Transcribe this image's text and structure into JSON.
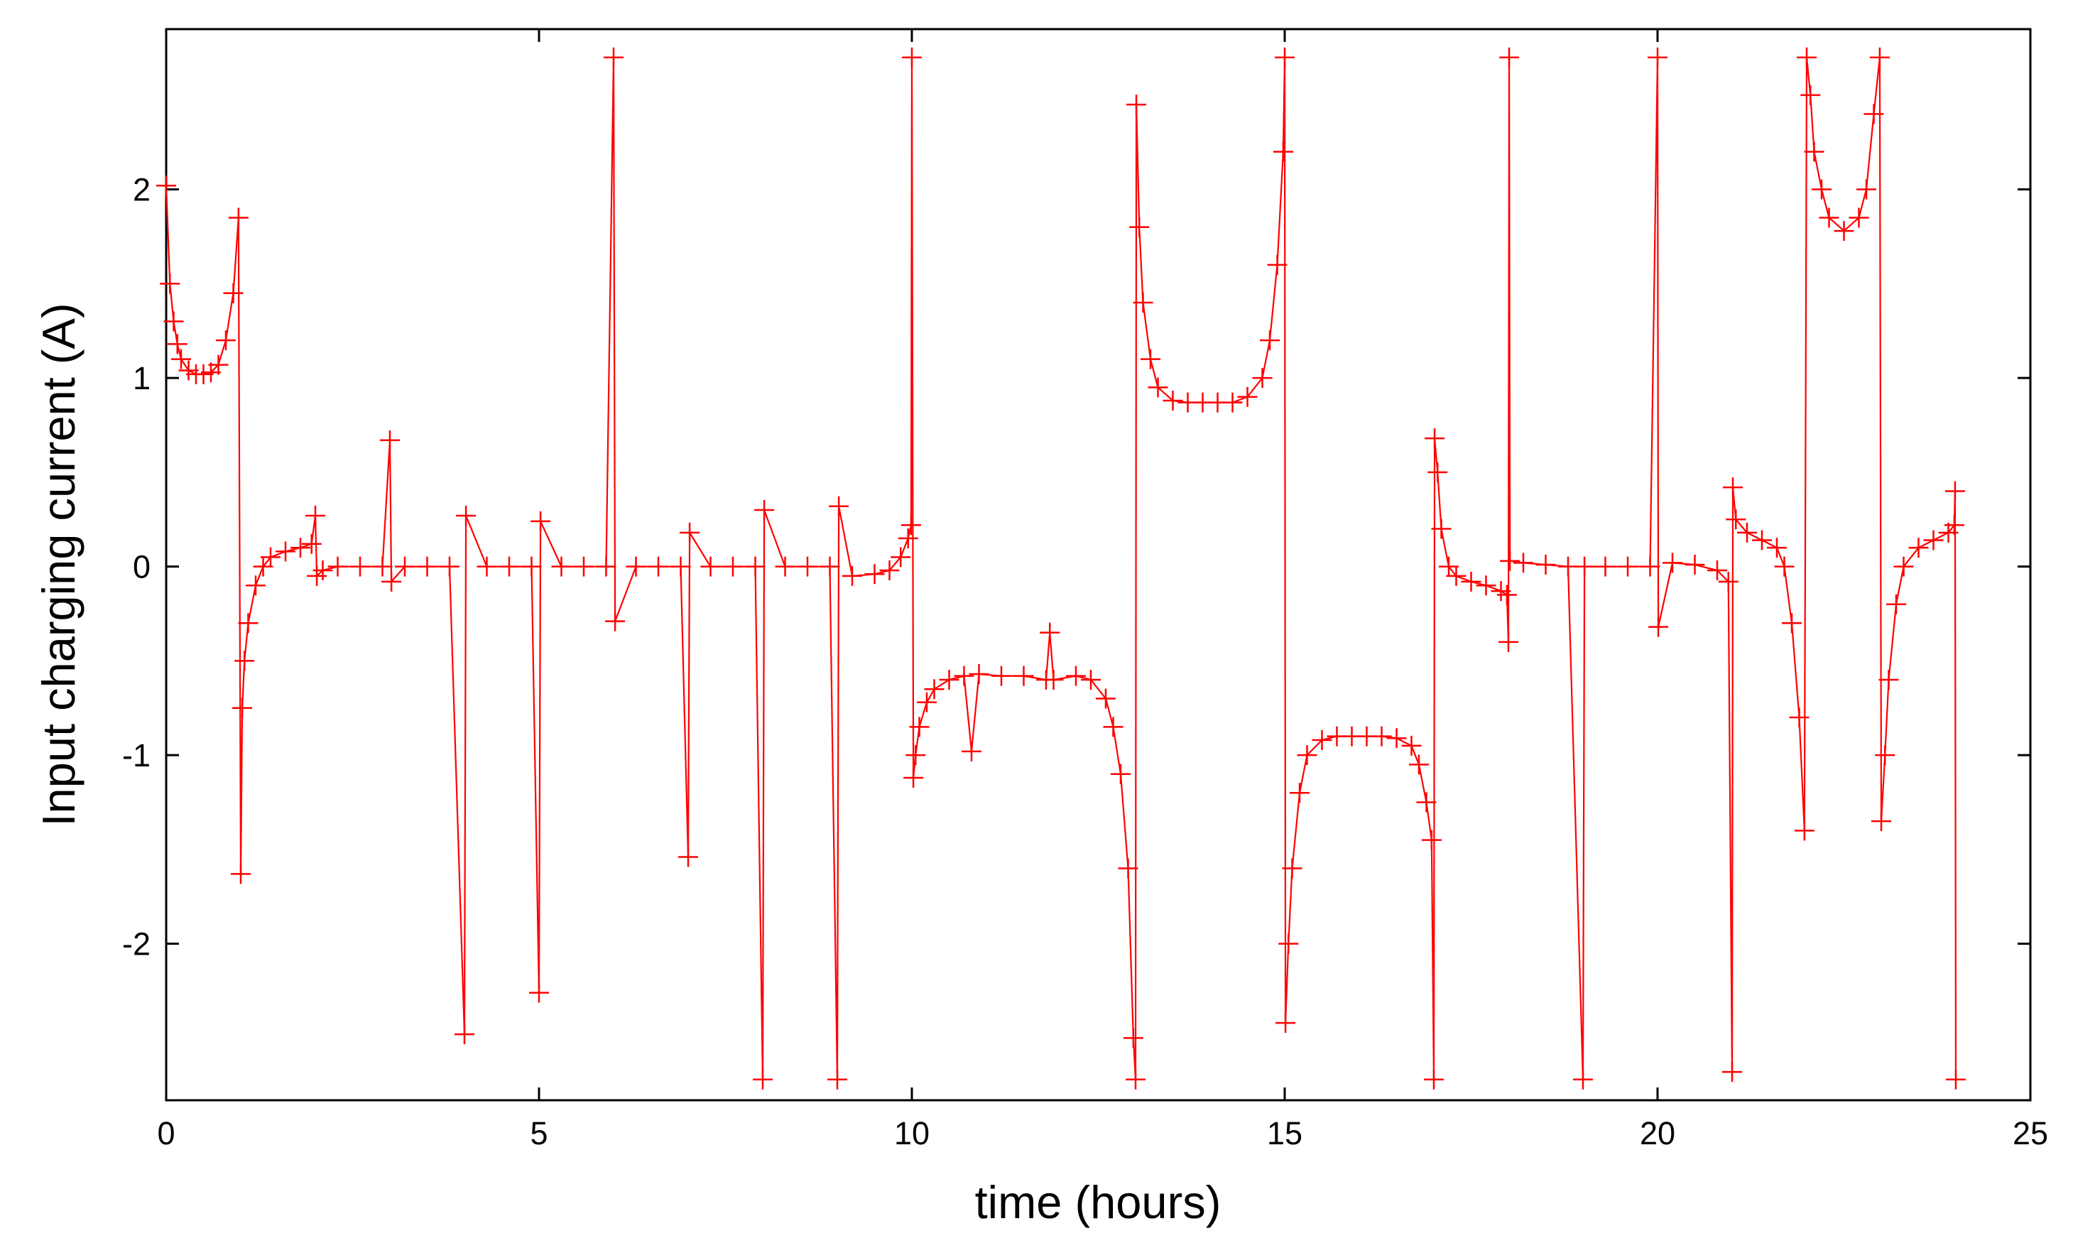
{
  "chart_data": {
    "type": "line",
    "x_label": "time (hours)",
    "y_label": "Input charging current (A)",
    "color": "#ff0000",
    "marker": "+",
    "xlim": [
      0,
      25
    ],
    "ylim": [
      -2.83,
      2.85
    ],
    "xticks": [
      0,
      5,
      10,
      15,
      20,
      25
    ],
    "yticks": [
      -2,
      -1,
      0,
      1,
      2
    ],
    "x": [
      0,
      0.05,
      0.1,
      0.15,
      0.2,
      0.3,
      0.4,
      0.5,
      0.6,
      0.7,
      0.8,
      0.9,
      0.97,
      1.0,
      1.02,
      1.05,
      1.1,
      1.2,
      1.3,
      1.4,
      1.6,
      1.8,
      1.95,
      2.0,
      2.02,
      2.1,
      2.3,
      2.6,
      2.9,
      3.0,
      3.02,
      3.2,
      3.5,
      3.8,
      4.0,
      4.02,
      4.3,
      4.6,
      4.9,
      5.0,
      5.02,
      5.3,
      5.6,
      5.9,
      6.0,
      6.02,
      6.3,
      6.6,
      6.9,
      7.0,
      7.02,
      7.3,
      7.6,
      7.9,
      8.0,
      8.02,
      8.3,
      8.6,
      8.9,
      9.0,
      9.02,
      9.2,
      9.5,
      9.7,
      9.85,
      9.95,
      9.99,
      10.0,
      10.02,
      10.05,
      10.1,
      10.2,
      10.3,
      10.5,
      10.7,
      10.8,
      10.9,
      11.2,
      11.5,
      11.8,
      11.85,
      11.9,
      12.2,
      12.4,
      12.6,
      12.7,
      12.8,
      12.9,
      12.97,
      13.0,
      13.01,
      13.05,
      13.1,
      13.2,
      13.3,
      13.5,
      13.7,
      13.9,
      14.1,
      14.3,
      14.5,
      14.7,
      14.8,
      14.9,
      14.98,
      15.0,
      15.01,
      15.05,
      15.1,
      15.2,
      15.3,
      15.5,
      15.7,
      15.9,
      16.1,
      16.3,
      16.5,
      16.7,
      16.8,
      16.9,
      16.97,
      17.0,
      17.01,
      17.05,
      17.1,
      17.2,
      17.3,
      17.5,
      17.7,
      17.9,
      17.98,
      18.0,
      18.01,
      18.02,
      18.2,
      18.5,
      18.8,
      19.0,
      19.02,
      19.3,
      19.6,
      19.9,
      20.0,
      20.01,
      20.2,
      20.5,
      20.8,
      20.95,
      21.0,
      21.01,
      21.05,
      21.2,
      21.4,
      21.6,
      21.7,
      21.8,
      21.9,
      21.97,
      22.0,
      22.05,
      22.1,
      22.2,
      22.3,
      22.5,
      22.7,
      22.8,
      22.9,
      22.98,
      23.0,
      23.05,
      23.1,
      23.2,
      23.3,
      23.5,
      23.7,
      23.9,
      23.98,
      23.99,
      24.0
    ],
    "values": [
      2.02,
      1.5,
      1.3,
      1.18,
      1.1,
      1.04,
      1.02,
      1.02,
      1.03,
      1.07,
      1.2,
      1.45,
      1.85,
      -1.63,
      -0.75,
      -0.5,
      -0.3,
      -0.1,
      0.0,
      0.05,
      0.08,
      0.1,
      0.12,
      0.27,
      -0.05,
      -0.02,
      0.0,
      0.0,
      0.0,
      0.67,
      -0.08,
      0.0,
      0.0,
      0.0,
      -2.48,
      0.27,
      0.0,
      0.0,
      0.0,
      -2.26,
      0.24,
      0.0,
      0.0,
      0.0,
      2.7,
      -0.29,
      0.0,
      0.0,
      0.0,
      -1.54,
      0.18,
      0.0,
      0.0,
      0.0,
      -2.72,
      0.3,
      0.0,
      0.0,
      0.0,
      -2.72,
      0.32,
      -0.05,
      -0.04,
      -0.02,
      0.05,
      0.15,
      0.22,
      2.7,
      -1.12,
      -1.0,
      -0.85,
      -0.72,
      -0.65,
      -0.6,
      -0.58,
      -0.98,
      -0.57,
      -0.58,
      -0.58,
      -0.6,
      -0.35,
      -0.6,
      -0.58,
      -0.6,
      -0.7,
      -0.85,
      -1.1,
      -1.6,
      -2.5,
      -2.72,
      2.45,
      1.8,
      1.4,
      1.1,
      0.95,
      0.88,
      0.87,
      0.87,
      0.87,
      0.87,
      0.9,
      1.0,
      1.2,
      1.6,
      2.2,
      2.7,
      -2.42,
      -2.0,
      -1.6,
      -1.2,
      -1.0,
      -0.92,
      -0.9,
      -0.9,
      -0.9,
      -0.9,
      -0.91,
      -0.95,
      -1.05,
      -1.25,
      -1.45,
      -2.72,
      0.68,
      0.5,
      0.2,
      0.0,
      -0.05,
      -0.08,
      -0.1,
      -0.13,
      -0.15,
      -0.4,
      2.7,
      0.03,
      0.02,
      0.01,
      0.0,
      -2.72,
      0.0,
      0.0,
      0.0,
      0.0,
      2.7,
      -0.32,
      0.02,
      0.01,
      -0.02,
      -0.08,
      -2.68,
      0.42,
      0.25,
      0.18,
      0.14,
      0.1,
      0.0,
      -0.3,
      -0.8,
      -1.4,
      2.7,
      2.5,
      2.2,
      2.0,
      1.85,
      1.78,
      1.85,
      2.0,
      2.4,
      2.7,
      -1.35,
      -1.0,
      -0.6,
      -0.2,
      0.0,
      0.1,
      0.14,
      0.18,
      0.22,
      0.4,
      -2.72
    ]
  }
}
